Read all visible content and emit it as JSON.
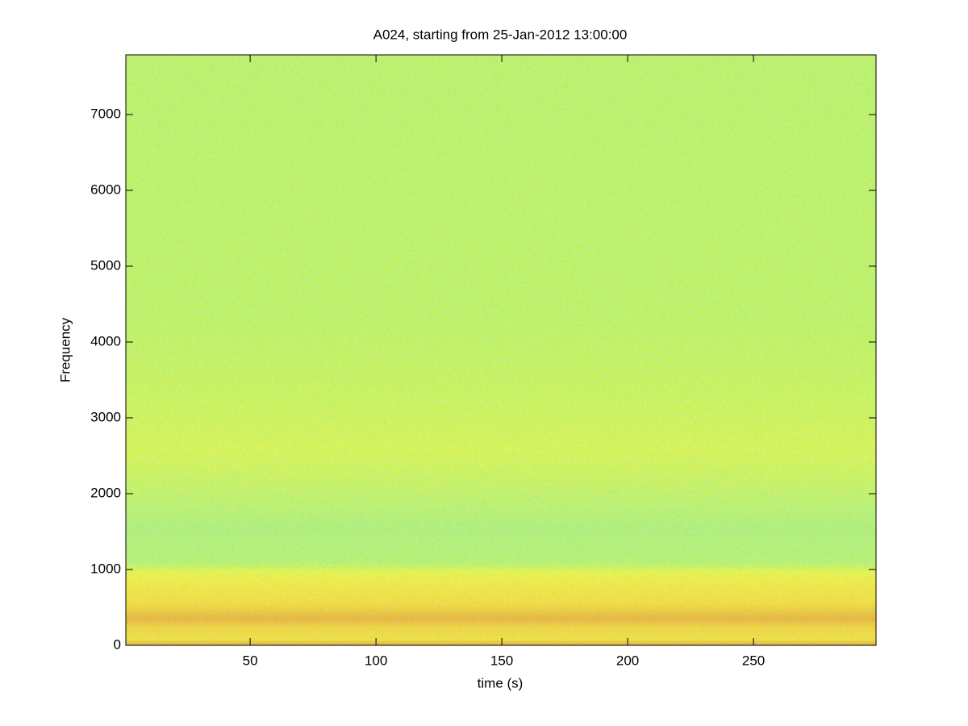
{
  "chart_data": {
    "type": "spectrogram",
    "title": "A024, starting from 25-Jan-2012 13:00:00",
    "xlabel": "time (s)",
    "ylabel": "Frequency",
    "xlim": [
      0.6,
      298.7
    ],
    "ylim": [
      0,
      7787
    ],
    "xticks": [
      50,
      100,
      150,
      200,
      250
    ],
    "yticks": [
      0,
      1000,
      2000,
      3000,
      4000,
      5000,
      6000,
      7000
    ]
  }
}
